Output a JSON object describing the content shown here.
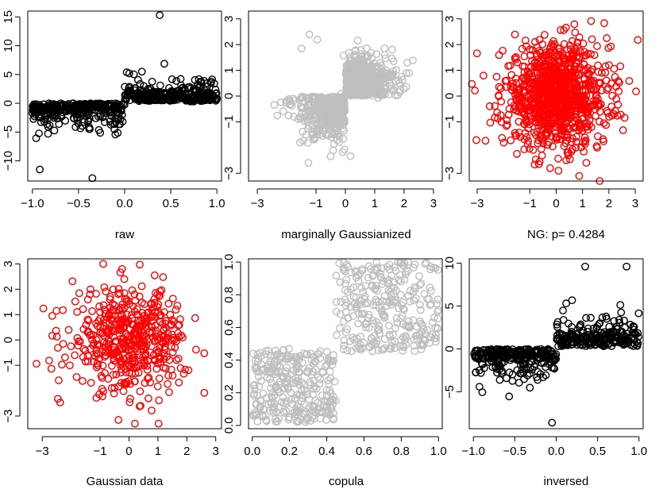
{
  "figure": {
    "panels_layout": "2 rows x 3 columns",
    "panel_labels": {
      "raw": "raw",
      "marginal": "marginally Gaussianized",
      "ng": "NG: p= 0.4284",
      "gauss": "Gaussian data",
      "copula": "copula",
      "inversed": "inversed"
    },
    "colors": {
      "black": "#000000",
      "gray": "#BEBEBE",
      "red": "#FF0000"
    }
  },
  "chart_data": [
    {
      "id": "raw",
      "type": "scatter",
      "title": "raw",
      "color": "#000000",
      "xlim": [
        -1.05,
        1.05
      ],
      "ylim": [
        -13.5,
        16
      ],
      "xticks": [
        -1.0,
        -0.5,
        0.0,
        0.5,
        1.0
      ],
      "xtick_labels": [
        "−1.0",
        "−0.5",
        "0.0",
        "0.5",
        "1.0"
      ],
      "yticks": [
        -10,
        -5,
        0,
        5,
        10,
        15
      ],
      "ytick_labels": [
        "−10",
        "−5",
        "0",
        "5",
        "10",
        "15"
      ],
      "generator": "step",
      "n": 650,
      "sd_neg": 2.2,
      "sd_pos": 1.6,
      "notable_points": [
        [
          0.38,
          15.3
        ],
        [
          -0.35,
          -13.0
        ],
        [
          -0.92,
          -11.5
        ]
      ]
    },
    {
      "id": "marginal",
      "type": "scatter",
      "title": "marginally Gaussianized",
      "color": "#BEBEBE",
      "xlim": [
        -3.3,
        3.3
      ],
      "ylim": [
        -3.3,
        3.3
      ],
      "xticks": [
        -3,
        -1,
        0,
        1,
        2,
        3
      ],
      "xtick_labels": [
        "−3",
        "−1",
        "0",
        "1",
        "2",
        "3"
      ],
      "yticks": [
        -3,
        -1,
        0,
        1,
        2,
        3
      ],
      "ytick_labels": [
        "−3",
        "−1",
        "0",
        "1",
        "2",
        "3"
      ],
      "generator": "quadrant",
      "n": 1000
    },
    {
      "id": "ng",
      "type": "scatter",
      "title": "NG: p= 0.4284",
      "color": "#FF0000",
      "xlim": [
        -3.3,
        3.3
      ],
      "ylim": [
        -3.3,
        3.3
      ],
      "xticks": [
        -3,
        -1,
        0,
        1,
        2,
        3
      ],
      "xtick_labels": [
        "−3",
        "−1",
        "0",
        "1",
        "2",
        "3"
      ],
      "yticks": [
        -3,
        -1,
        0,
        1,
        2,
        3
      ],
      "ytick_labels": [
        "−3",
        "−1",
        "0",
        "1",
        "2",
        "3"
      ],
      "generator": "gaussian",
      "n": 1000
    },
    {
      "id": "gauss",
      "type": "scatter",
      "title": "Gaussian data",
      "color": "#FF0000",
      "xlim": [
        -3.5,
        3.2
      ],
      "ylim": [
        -3.5,
        3.2
      ],
      "xticks": [
        -3,
        -1,
        0,
        1,
        2,
        3
      ],
      "xtick_labels": [
        "−3",
        "−1",
        "0",
        "1",
        "2",
        "3"
      ],
      "yticks": [
        -3,
        -1,
        0,
        1,
        2,
        3
      ],
      "ytick_labels": [
        "−3",
        "−1",
        "0",
        "1",
        "2",
        "3"
      ],
      "generator": "gaussian",
      "n": 500
    },
    {
      "id": "copula",
      "type": "scatter",
      "title": "copula",
      "color": "#BEBEBE",
      "xlim": [
        -0.02,
        1.02
      ],
      "ylim": [
        -0.02,
        1.02
      ],
      "xticks": [
        0.0,
        0.2,
        0.4,
        0.6,
        0.8,
        1.0
      ],
      "xtick_labels": [
        "0.0",
        "0.2",
        "0.4",
        "0.6",
        "0.8",
        "1.0"
      ],
      "yticks": [
        0.0,
        0.2,
        0.4,
        0.6,
        0.8,
        1.0
      ],
      "ytick_labels": [
        "0.0",
        "0.2",
        "0.4",
        "0.6",
        "0.8",
        "1.0"
      ],
      "generator": "copula",
      "n": 600
    },
    {
      "id": "inversed",
      "type": "scatter",
      "title": "inversed",
      "color": "#000000",
      "xlim": [
        -1.05,
        1.05
      ],
      "ylim": [
        -9.3,
        10.5
      ],
      "xticks": [
        -1.0,
        -0.5,
        0.0,
        0.5,
        1.0
      ],
      "xtick_labels": [
        "−1.0",
        "−0.5",
        "0.0",
        "0.5",
        "1.0"
      ],
      "yticks": [
        -5,
        0,
        5,
        10
      ],
      "ytick_labels": [
        "−5",
        "0",
        "5",
        "10"
      ],
      "generator": "step",
      "n": 500,
      "sd_neg": 1.8,
      "sd_pos": 1.7,
      "notable_points": [
        [
          0.35,
          9.6
        ],
        [
          0.85,
          9.6
        ],
        [
          -0.05,
          -8.6
        ]
      ]
    }
  ]
}
